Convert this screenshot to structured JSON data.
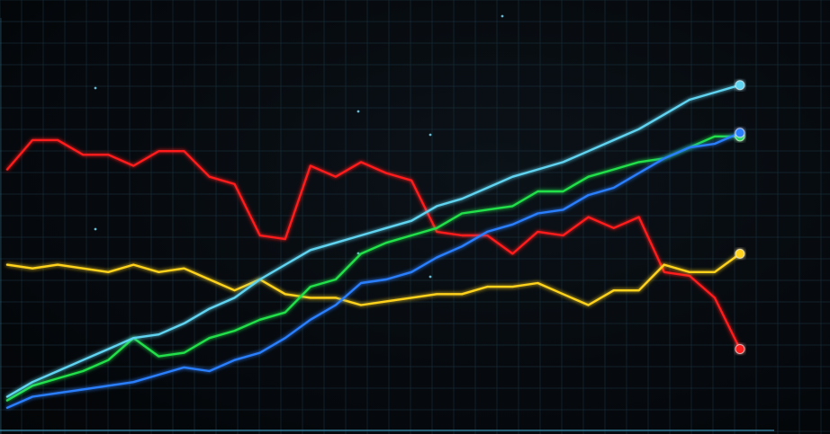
{
  "chart_data": {
    "type": "line",
    "title": "",
    "xlabel": "",
    "ylabel": "",
    "grid": true,
    "legend": "none",
    "xlim": [
      0,
      29
    ],
    "ylim": [
      0,
      100
    ],
    "x": [
      0,
      1,
      2,
      3,
      4,
      5,
      6,
      7,
      8,
      9,
      10,
      11,
      12,
      13,
      14,
      15,
      16,
      17,
      18,
      19,
      20,
      21,
      22,
      23,
      24,
      25,
      26,
      27,
      28,
      29
    ],
    "series": [
      {
        "color": "#ff1a1a",
        "values": [
          68,
          76,
          76,
          72,
          72,
          69,
          73,
          73,
          66,
          64,
          50,
          49,
          69,
          66,
          70,
          67,
          65,
          51,
          50,
          50,
          45,
          51,
          50,
          55,
          52,
          55,
          40,
          39,
          33,
          19
        ]
      },
      {
        "color": "#ffd21f",
        "values": [
          42,
          41,
          42,
          41,
          40,
          42,
          40,
          41,
          38,
          35,
          38,
          34,
          33,
          33,
          31,
          32,
          33,
          34,
          34,
          36,
          36,
          37,
          34,
          31,
          35,
          35,
          42,
          40,
          40,
          45
        ]
      },
      {
        "color": "#22e04a",
        "values": [
          5,
          9,
          11,
          13,
          16,
          22,
          17,
          18,
          22,
          24,
          27,
          29,
          36,
          38,
          45,
          48,
          50,
          52,
          56,
          57,
          58,
          62,
          62,
          66,
          68,
          70,
          71,
          74,
          77,
          77
        ]
      },
      {
        "color": "#2a7fff",
        "values": [
          3,
          6,
          7,
          8,
          9,
          10,
          12,
          14,
          13,
          16,
          18,
          22,
          27,
          31,
          37,
          38,
          40,
          44,
          47,
          51,
          53,
          56,
          57,
          61,
          63,
          67,
          71,
          74,
          75,
          78
        ]
      },
      {
        "color": "#5fd3f0",
        "values": [
          6,
          10,
          13,
          16,
          19,
          22,
          23,
          26,
          30,
          33,
          38,
          42,
          46,
          48,
          50,
          52,
          54,
          58,
          60,
          63,
          66,
          68,
          70,
          73,
          76,
          79,
          83,
          87,
          89,
          91
        ]
      }
    ]
  }
}
